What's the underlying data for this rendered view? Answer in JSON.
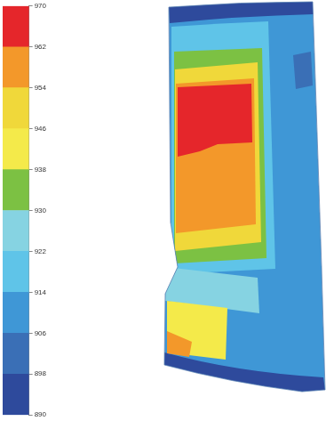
{
  "chart_data": {
    "type": "contour",
    "colorbar_lim": [
      890,
      970
    ],
    "colorbar_ticks": [
      890,
      898,
      906,
      914,
      922,
      930,
      938,
      946,
      954,
      962,
      970
    ],
    "colors": [
      "#2e4a9c",
      "#3a6fb6",
      "#3f97d6",
      "#5fc4e8",
      "#86d3e2",
      "#7cc143",
      "#f4ea4a",
      "#f0d83a",
      "#f3982a",
      "#e5262b"
    ],
    "values": [
      910,
      894,
      894,
      918,
      934,
      950,
      958,
      966,
      926,
      946,
      958,
      902
    ]
  }
}
